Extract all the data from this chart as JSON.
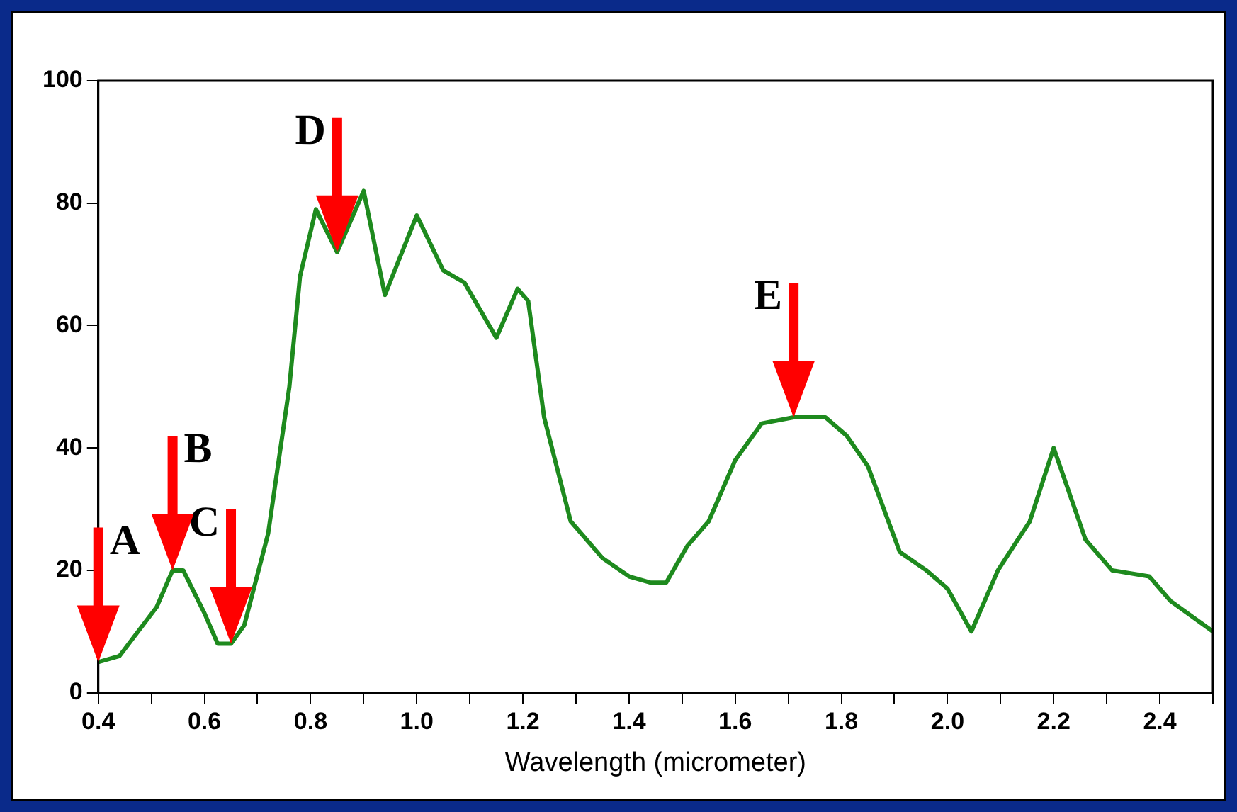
{
  "chart_data": {
    "type": "line",
    "xlabel": "Wavelength (micrometer)",
    "xlim": [
      0.4,
      2.5
    ],
    "xticks": [
      0.4,
      {
        "value": 0.5,
        "label": null
      },
      0.6,
      {
        "value": 0.7,
        "label": null
      },
      0.8,
      {
        "value": 0.9,
        "label": null
      },
      {
        "value": 1.0,
        "label": "1.0"
      },
      {
        "value": 1.1,
        "label": null
      },
      1.2,
      {
        "value": 1.3,
        "label": null
      },
      1.4,
      {
        "value": 1.5,
        "label": null
      },
      1.6,
      {
        "value": 1.7,
        "label": null
      },
      1.8,
      {
        "value": 1.9,
        "label": null
      },
      {
        "value": 2.0,
        "label": "2.0"
      },
      {
        "value": 2.1,
        "label": null
      },
      2.2,
      {
        "value": 2.3,
        "label": null
      },
      2.4,
      {
        "value": 2.5,
        "label": null
      }
    ],
    "ylim": [
      0,
      100
    ],
    "yticks": [
      0,
      20,
      40,
      60,
      80,
      100
    ],
    "grid": false,
    "legend": false,
    "x": [
      0.4,
      0.44,
      0.475,
      0.51,
      0.54,
      0.56,
      0.6,
      0.625,
      0.65,
      0.675,
      0.72,
      0.76,
      0.78,
      0.81,
      0.85,
      0.9,
      0.94,
      1.0,
      1.05,
      1.09,
      1.15,
      1.19,
      1.21,
      1.24,
      1.29,
      1.35,
      1.4,
      1.44,
      1.47,
      1.51,
      1.55,
      1.6,
      1.65,
      1.71,
      1.77,
      1.81,
      1.85,
      1.91,
      1.96,
      2.0,
      2.045,
      2.095,
      2.155,
      2.2,
      2.26,
      2.31,
      2.38,
      2.42,
      2.5
    ],
    "series": [
      {
        "color": "#1e8a1e",
        "values": [
          5,
          6,
          10,
          14,
          20,
          20,
          13,
          8,
          8,
          11,
          26,
          50,
          68,
          79,
          72,
          82,
          65,
          78,
          69,
          67,
          58,
          66,
          64,
          45,
          28,
          22,
          19,
          18,
          18,
          24,
          28,
          38,
          44,
          45,
          45,
          42,
          37,
          23,
          20,
          17,
          10,
          20,
          28,
          40,
          25,
          20,
          19,
          15,
          10
        ]
      }
    ],
    "annotations": [
      {
        "text": "A",
        "x": 0.4,
        "y": 5
      },
      {
        "text": "B",
        "x": 0.54,
        "y": 20
      },
      {
        "text": "C",
        "x": 0.65,
        "y": 8
      },
      {
        "text": "D",
        "x": 0.85,
        "y": 72
      },
      {
        "text": "E",
        "x": 1.71,
        "y": 45
      }
    ]
  }
}
